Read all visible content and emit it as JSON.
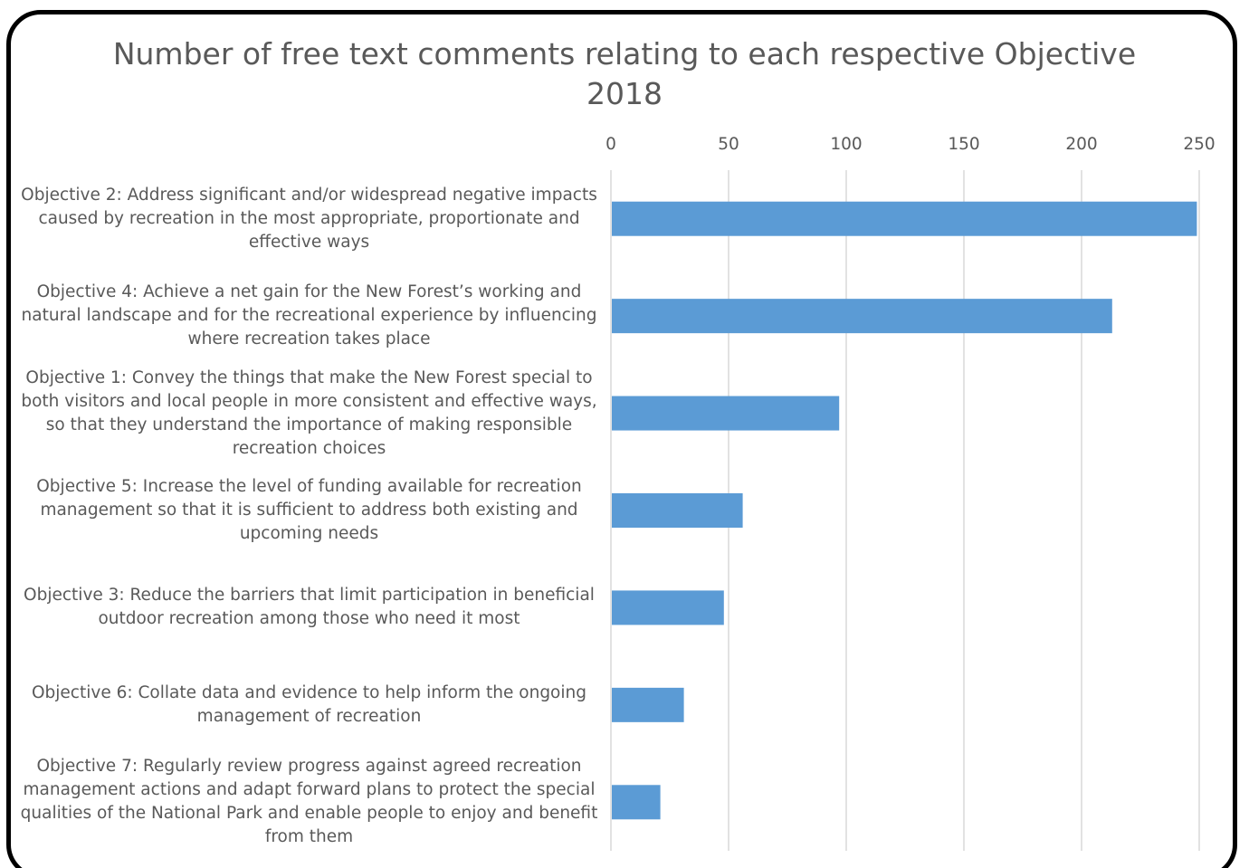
{
  "chart_data": {
    "type": "bar",
    "orientation": "horizontal",
    "title": "Number of free text comments relating to each respective Objective 2018",
    "title_lines": [
      "Number of free text comments relating to each respective Objective",
      "2018"
    ],
    "categories": [
      "Objective 2: Address significant and/or widespread negative impacts caused by recreation in the most appropriate, proportionate and effective ways",
      "Objective 4: Achieve a net gain for the New Forest’s working and natural landscape and for the recreational experience by influencing where recreation takes place",
      "Objective 1: Convey the things that make the New Forest special to both visitors and local people in more consistent and effective ways, so that they understand the importance of making responsible recreation choices",
      "Objective 5: Increase the level of funding available for recreation management so that it is sufficient to address both existing and upcoming needs",
      "Objective 3: Reduce the barriers that limit participation in beneficial outdoor recreation among those who need it most",
      "Objective 6: Collate data and evidence to help inform the ongoing management of recreation",
      "Objective 7: Regularly review progress against agreed recreation management actions and adapt forward plans to protect the special qualities of the National Park and enable people to enjoy and benefit from them"
    ],
    "values": [
      249,
      213,
      97,
      56,
      48,
      31,
      21
    ],
    "xlim": [
      0,
      250
    ],
    "ticks": [
      0,
      50,
      100,
      150,
      200,
      250
    ],
    "xaxis_position": "top",
    "grid": true,
    "legend": "none",
    "bar_color": "#5b9bd5",
    "grid_color": "#d9d9d9"
  }
}
